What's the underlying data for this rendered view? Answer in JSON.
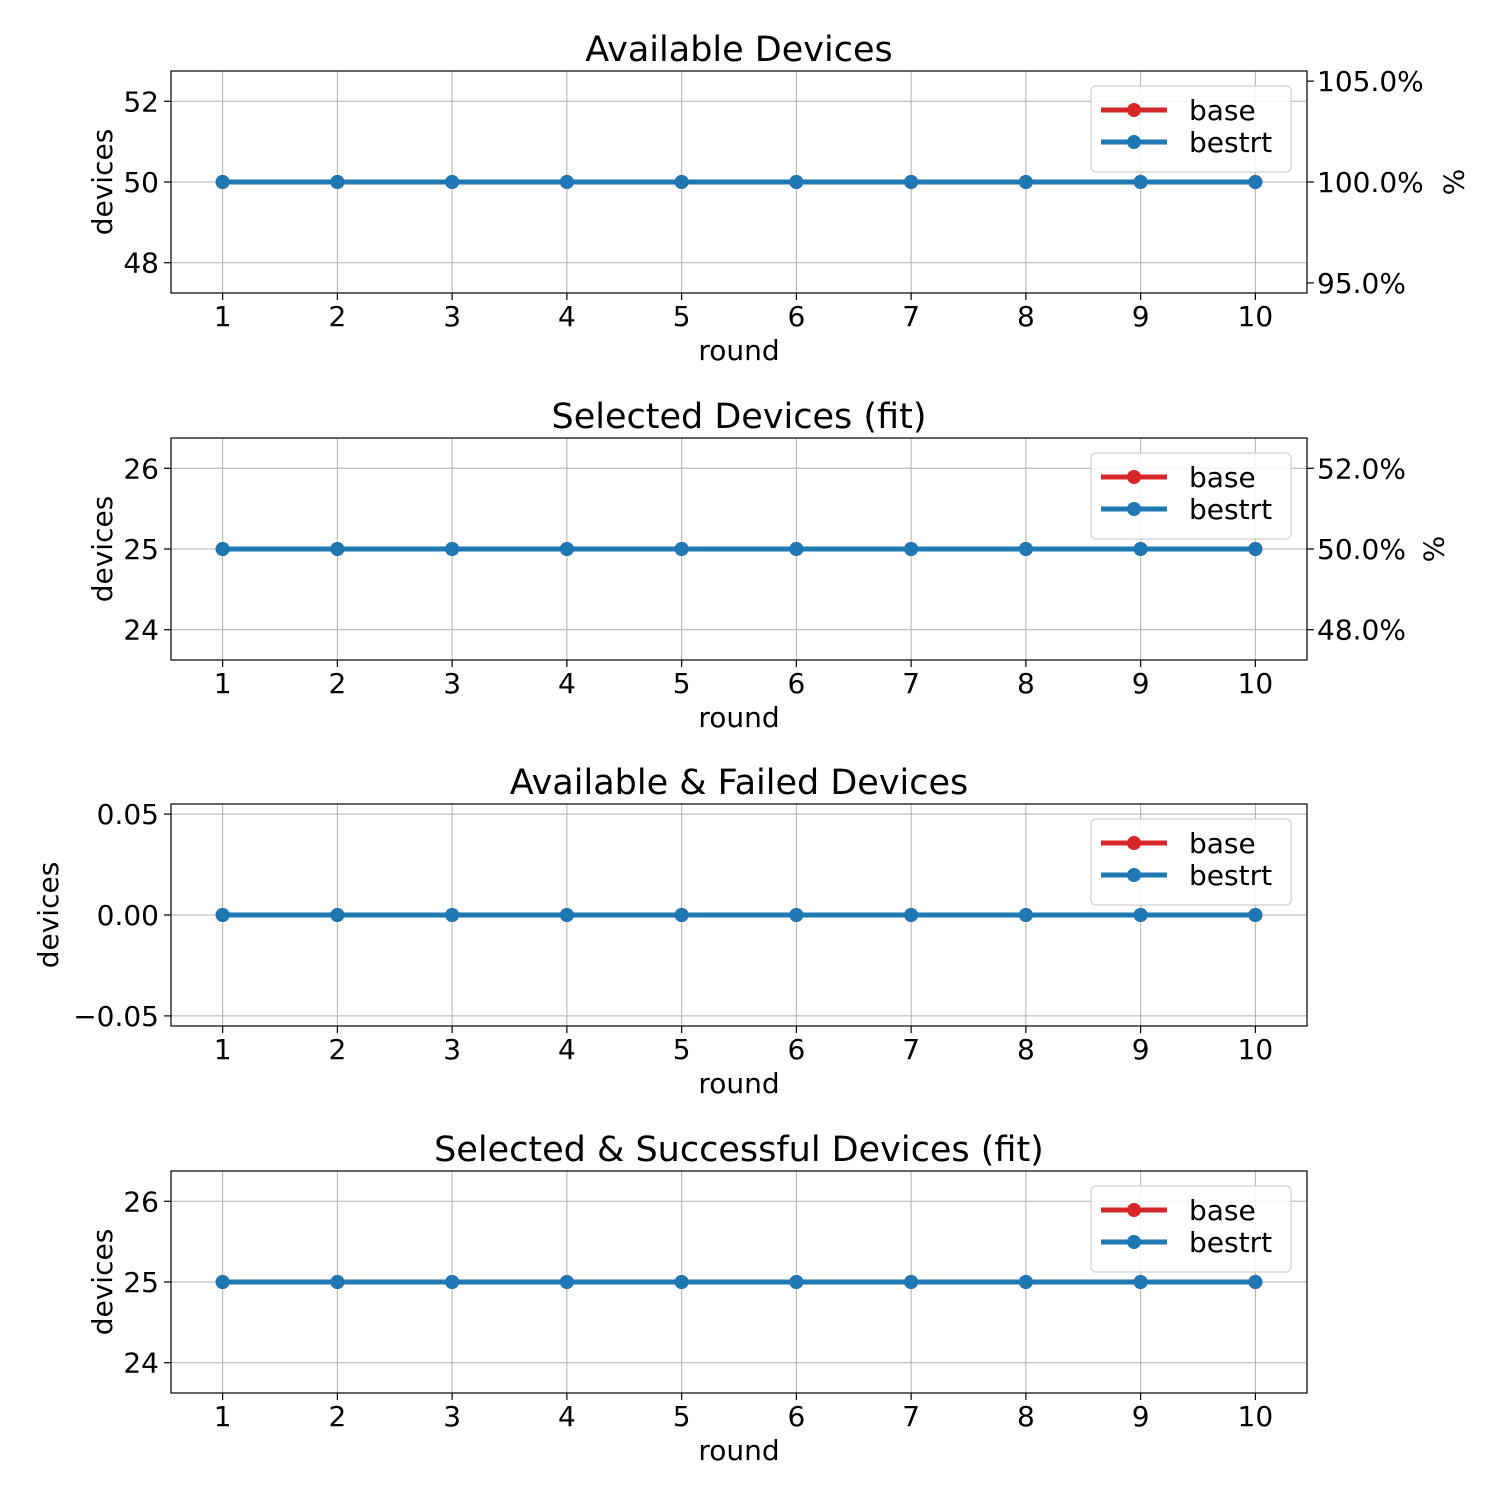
{
  "chart_data": [
    {
      "type": "line",
      "title": "Available Devices",
      "xlabel": "round",
      "ylabel": "devices",
      "x": [
        1,
        2,
        3,
        4,
        5,
        6,
        7,
        8,
        9,
        10
      ],
      "ylim": [
        47.25,
        52.75
      ],
      "yticks": [
        48,
        50,
        52
      ],
      "ytick_labels": [
        "48",
        "50",
        "52"
      ],
      "secondary_axis": {
        "ylabel": "%",
        "ticks": [
          95,
          100,
          105
        ],
        "tick_labels": [
          "95.0%",
          "100.0%",
          "105.0%"
        ],
        "scale_factor": 2
      },
      "grid": true,
      "legend_position": "upper right",
      "series": [
        {
          "name": "base",
          "color": "#d62728",
          "values": [
            50,
            50,
            50,
            50,
            50,
            50,
            50,
            50,
            50,
            50
          ]
        },
        {
          "name": "bestrt",
          "color": "#1f77b4",
          "values": [
            50,
            50,
            50,
            50,
            50,
            50,
            50,
            50,
            50,
            50
          ]
        }
      ]
    },
    {
      "type": "line",
      "title": "Selected Devices (fit)",
      "xlabel": "round",
      "ylabel": "devices",
      "x": [
        1,
        2,
        3,
        4,
        5,
        6,
        7,
        8,
        9,
        10
      ],
      "ylim": [
        23.625,
        26.375
      ],
      "yticks": [
        24,
        25,
        26
      ],
      "ytick_labels": [
        "24",
        "25",
        "26"
      ],
      "secondary_axis": {
        "ylabel": "%",
        "ticks": [
          48,
          50,
          52
        ],
        "tick_labels": [
          "48.0%",
          "50.0%",
          "52.0%"
        ],
        "scale_factor": 2
      },
      "grid": true,
      "legend_position": "upper right",
      "series": [
        {
          "name": "base",
          "color": "#d62728",
          "values": [
            25,
            25,
            25,
            25,
            25,
            25,
            25,
            25,
            25,
            25
          ]
        },
        {
          "name": "bestrt",
          "color": "#1f77b4",
          "values": [
            25,
            25,
            25,
            25,
            25,
            25,
            25,
            25,
            25,
            25
          ]
        }
      ]
    },
    {
      "type": "line",
      "title": "Available & Failed Devices",
      "xlabel": "round",
      "ylabel": "devices",
      "x": [
        1,
        2,
        3,
        4,
        5,
        6,
        7,
        8,
        9,
        10
      ],
      "ylim": [
        -0.055,
        0.055
      ],
      "yticks": [
        -0.05,
        0,
        0.05
      ],
      "ytick_labels": [
        "−0.05",
        "0.00",
        "0.05"
      ],
      "grid": true,
      "legend_position": "upper right",
      "series": [
        {
          "name": "base",
          "color": "#d62728",
          "values": [
            0,
            0,
            0,
            0,
            0,
            0,
            0,
            0,
            0,
            0
          ]
        },
        {
          "name": "bestrt",
          "color": "#1f77b4",
          "values": [
            0,
            0,
            0,
            0,
            0,
            0,
            0,
            0,
            0,
            0
          ]
        }
      ]
    },
    {
      "type": "line",
      "title": "Selected & Successful Devices (fit)",
      "xlabel": "round",
      "ylabel": "devices",
      "x": [
        1,
        2,
        3,
        4,
        5,
        6,
        7,
        8,
        9,
        10
      ],
      "ylim": [
        23.625,
        26.375
      ],
      "yticks": [
        24,
        25,
        26
      ],
      "ytick_labels": [
        "24",
        "25",
        "26"
      ],
      "grid": true,
      "legend_position": "upper right",
      "series": [
        {
          "name": "base",
          "color": "#d62728",
          "values": [
            25,
            25,
            25,
            25,
            25,
            25,
            25,
            25,
            25,
            25
          ]
        },
        {
          "name": "bestrt",
          "color": "#1f77b4",
          "values": [
            25,
            25,
            25,
            25,
            25,
            25,
            25,
            25,
            25,
            25
          ]
        }
      ]
    }
  ]
}
